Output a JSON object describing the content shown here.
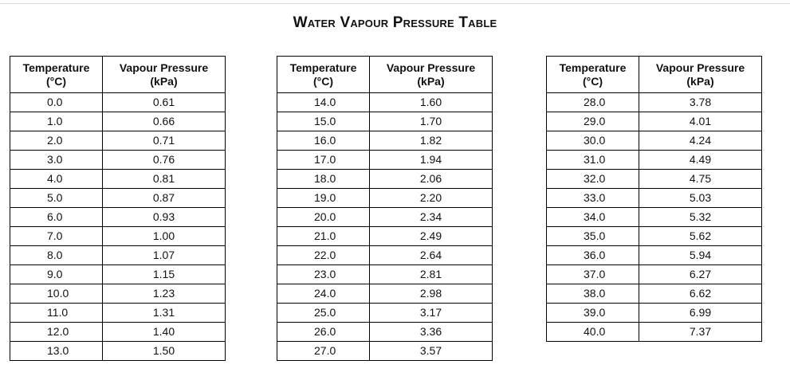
{
  "title": "Water Vapour Pressure Table",
  "headers": {
    "temperature": "Temperature",
    "temperature_unit": "(°C)",
    "pressure": "Vapour Pressure",
    "pressure_unit": "(kPa)"
  },
  "tables": [
    {
      "rows": [
        {
          "t": "0.0",
          "p": "0.61"
        },
        {
          "t": "1.0",
          "p": "0.66"
        },
        {
          "t": "2.0",
          "p": "0.71"
        },
        {
          "t": "3.0",
          "p": "0.76"
        },
        {
          "t": "4.0",
          "p": "0.81"
        },
        {
          "t": "5.0",
          "p": "0.87"
        },
        {
          "t": "6.0",
          "p": "0.93"
        },
        {
          "t": "7.0",
          "p": "1.00"
        },
        {
          "t": "8.0",
          "p": "1.07"
        },
        {
          "t": "9.0",
          "p": "1.15"
        },
        {
          "t": "10.0",
          "p": "1.23"
        },
        {
          "t": "11.0",
          "p": "1.31"
        },
        {
          "t": "12.0",
          "p": "1.40"
        },
        {
          "t": "13.0",
          "p": "1.50"
        }
      ]
    },
    {
      "rows": [
        {
          "t": "14.0",
          "p": "1.60"
        },
        {
          "t": "15.0",
          "p": "1.70"
        },
        {
          "t": "16.0",
          "p": "1.82"
        },
        {
          "t": "17.0",
          "p": "1.94"
        },
        {
          "t": "18.0",
          "p": "2.06"
        },
        {
          "t": "19.0",
          "p": "2.20"
        },
        {
          "t": "20.0",
          "p": "2.34"
        },
        {
          "t": "21.0",
          "p": "2.49"
        },
        {
          "t": "22.0",
          "p": "2.64"
        },
        {
          "t": "23.0",
          "p": "2.81"
        },
        {
          "t": "24.0",
          "p": "2.98"
        },
        {
          "t": "25.0",
          "p": "3.17"
        },
        {
          "t": "26.0",
          "p": "3.36"
        },
        {
          "t": "27.0",
          "p": "3.57"
        }
      ]
    },
    {
      "rows": [
        {
          "t": "28.0",
          "p": "3.78"
        },
        {
          "t": "29.0",
          "p": "4.01"
        },
        {
          "t": "30.0",
          "p": "4.24"
        },
        {
          "t": "31.0",
          "p": "4.49"
        },
        {
          "t": "32.0",
          "p": "4.75"
        },
        {
          "t": "33.0",
          "p": "5.03"
        },
        {
          "t": "34.0",
          "p": "5.32"
        },
        {
          "t": "35.0",
          "p": "5.62"
        },
        {
          "t": "36.0",
          "p": "5.94"
        },
        {
          "t": "37.0",
          "p": "6.27"
        },
        {
          "t": "38.0",
          "p": "6.62"
        },
        {
          "t": "39.0",
          "p": "6.99"
        },
        {
          "t": "40.0",
          "p": "7.37"
        }
      ]
    }
  ]
}
